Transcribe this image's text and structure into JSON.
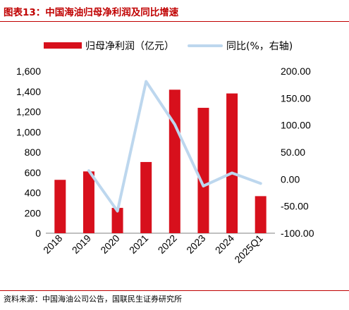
{
  "title": "图表13：中国海油归母净利润及同比增速",
  "source": "资料来源：中国海油公司公告，国联民生证券研究所",
  "chart_data": {
    "type": "bar",
    "title": "图表13：中国海油归母净利润及同比增速",
    "categories": [
      "2018",
      "2019",
      "2020",
      "2021",
      "2022",
      "2023",
      "2024",
      "2025Q1"
    ],
    "series": [
      {
        "name": "归母净利润（亿元）",
        "type": "bar",
        "axis": "left",
        "color": "#d7101c",
        "values": [
          527,
          610,
          250,
          703,
          1417,
          1238,
          1380,
          366
        ]
      },
      {
        "name": "同比(%，右轴)",
        "type": "line",
        "axis": "right",
        "color": "#bdd7ee",
        "values": [
          null,
          15.8,
          -59.0,
          181.0,
          101.5,
          -12.6,
          11.5,
          -7.9
        ]
      }
    ],
    "y_left": {
      "min": 0,
      "max": 1600,
      "step": 200,
      "tick_labels": [
        "0",
        "200",
        "400",
        "600",
        "800",
        "1,000",
        "1,200",
        "1,400",
        "1,600"
      ]
    },
    "y_right": {
      "min": -100,
      "max": 200,
      "step": 50,
      "tick_labels": [
        "-100.00",
        "-50.00",
        "0.00",
        "50.00",
        "100.00",
        "150.00",
        "200.00"
      ]
    },
    "legend_position": "top",
    "grid": false
  }
}
